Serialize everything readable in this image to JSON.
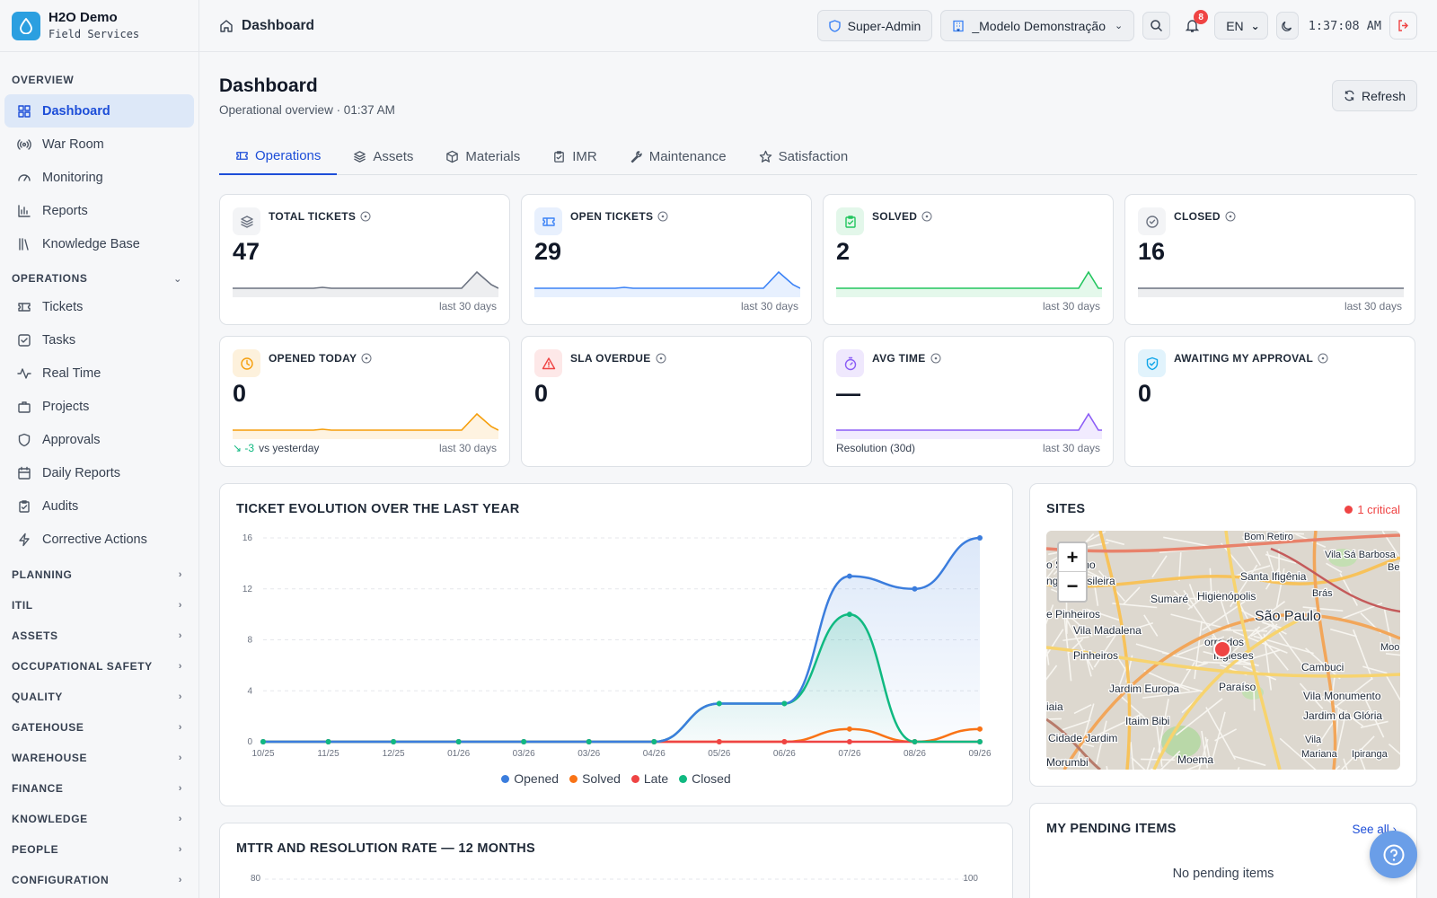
{
  "brand": {
    "title": "H2O Demo",
    "subtitle": "Field Services"
  },
  "sidebar": {
    "overview_label": "OVERVIEW",
    "overview_items": [
      {
        "label": "Dashboard",
        "icon": "grid-icon",
        "active": true
      },
      {
        "label": "War Room",
        "icon": "broadcast-icon"
      },
      {
        "label": "Monitoring",
        "icon": "gauge-icon"
      },
      {
        "label": "Reports",
        "icon": "bar-chart-icon"
      },
      {
        "label": "Knowledge Base",
        "icon": "library-icon"
      }
    ],
    "operations_label": "OPERATIONS",
    "operations_items": [
      {
        "label": "Tickets",
        "icon": "ticket-icon"
      },
      {
        "label": "Tasks",
        "icon": "check-square-icon"
      },
      {
        "label": "Real Time",
        "icon": "activity-icon"
      },
      {
        "label": "Projects",
        "icon": "briefcase-icon"
      },
      {
        "label": "Approvals",
        "icon": "shield-icon"
      },
      {
        "label": "Daily Reports",
        "icon": "calendar-icon"
      },
      {
        "label": "Audits",
        "icon": "clipboard-icon"
      },
      {
        "label": "Corrective Actions",
        "icon": "zap-icon"
      }
    ],
    "collapsed_sections": [
      "PLANNING",
      "ITIL",
      "ASSETS",
      "OCCUPATIONAL SAFETY",
      "QUALITY",
      "GATEHOUSE",
      "WAREHOUSE",
      "FINANCE",
      "KNOWLEDGE",
      "PEOPLE",
      "CONFIGURATION"
    ]
  },
  "topbar": {
    "breadcrumb": "Dashboard",
    "role": "Super-Admin",
    "tenant": "_Modelo Demonstração",
    "notifications": "8",
    "language": "EN",
    "clock": "1:37:08 AM"
  },
  "page": {
    "title": "Dashboard",
    "subtitle": "Operational overview · 01:37 AM",
    "refresh_label": "Refresh"
  },
  "tabs": [
    {
      "label": "Operations",
      "icon": "ticket-icon",
      "active": true
    },
    {
      "label": "Assets",
      "icon": "layers-icon"
    },
    {
      "label": "Materials",
      "icon": "box-icon"
    },
    {
      "label": "IMR",
      "icon": "clipboard-icon"
    },
    {
      "label": "Maintenance",
      "icon": "wrench-icon"
    },
    {
      "label": "Satisfaction",
      "icon": "star-icon"
    }
  ],
  "kpis": [
    {
      "label": "TOTAL TICKETS",
      "value": "47",
      "foot": "last 30 days",
      "left": "",
      "icon": "layers-icon",
      "color": "#6b7280",
      "bg": "#f3f4f6",
      "spark": "flat-bump",
      "sparkcolor": "#6b7280"
    },
    {
      "label": "OPEN TICKETS",
      "value": "29",
      "foot": "last 30 days",
      "left": "",
      "icon": "ticket-icon",
      "color": "#3b82f6",
      "bg": "#e8f0fd",
      "spark": "flat-bump",
      "sparkcolor": "#3b82f6"
    },
    {
      "label": "SOLVED",
      "value": "2",
      "foot": "last 30 days",
      "left": "",
      "icon": "clipboard-check-icon",
      "color": "#22c55e",
      "bg": "#e3f7ea",
      "spark": "end-bump",
      "sparkcolor": "#22c55e"
    },
    {
      "label": "CLOSED",
      "value": "16",
      "foot": "last 30 days",
      "left": "",
      "icon": "check-circle-icon",
      "color": "#6b7280",
      "bg": "#f3f4f6",
      "spark": "flat",
      "sparkcolor": "#6b7280"
    },
    {
      "label": "OPENED TODAY",
      "value": "0",
      "foot": "last 30 days",
      "left": "vs yesterday",
      "delta": "↘ -3",
      "icon": "clock-icon",
      "color": "#f59e0b",
      "bg": "#fdf1dc",
      "spark": "flat-bump",
      "sparkcolor": "#f59e0b"
    },
    {
      "label": "SLA OVERDUE",
      "value": "0",
      "foot": "",
      "left": "",
      "icon": "alert-triangle-icon",
      "color": "#ef4444",
      "bg": "#fde8e8",
      "spark": "none",
      "sparkcolor": "#ef4444"
    },
    {
      "label": "AVG TIME",
      "value": "—",
      "foot": "last 30 days",
      "left": "Resolution (30d)",
      "icon": "timer-icon",
      "color": "#8b5cf6",
      "bg": "#efe8fd",
      "spark": "end-bump",
      "sparkcolor": "#8b5cf6"
    },
    {
      "label": "AWAITING MY APPROVAL",
      "value": "0",
      "foot": "",
      "left": "",
      "icon": "shield-check-icon",
      "color": "#0ea5e9",
      "bg": "#e1f3fc",
      "spark": "none",
      "sparkcolor": "#0ea5e9"
    }
  ],
  "evolution": {
    "title": "TICKET EVOLUTION OVER THE LAST YEAR",
    "legend": [
      "Opened",
      "Solved",
      "Late",
      "Closed"
    ]
  },
  "chart_data": {
    "type": "line",
    "title": "TICKET EVOLUTION OVER THE LAST YEAR",
    "x": [
      "10/25",
      "11/25",
      "12/25",
      "01/26",
      "03/26",
      "03/26",
      "04/26",
      "05/26",
      "06/26",
      "07/26",
      "08/26",
      "09/26"
    ],
    "ylim": [
      0,
      16
    ],
    "yticks": [
      0,
      4,
      8,
      12,
      16
    ],
    "series": [
      {
        "name": "Opened",
        "color": "#3b7ddd",
        "values": [
          0,
          0,
          0,
          0,
          0,
          0,
          0,
          3,
          3,
          13,
          12,
          16
        ]
      },
      {
        "name": "Solved",
        "color": "#f97316",
        "values": [
          0,
          0,
          0,
          0,
          0,
          0,
          0,
          0,
          0,
          1,
          0,
          1
        ]
      },
      {
        "name": "Late",
        "color": "#ef4444",
        "values": [
          0,
          0,
          0,
          0,
          0,
          0,
          0,
          0,
          0,
          0,
          0,
          0
        ]
      },
      {
        "name": "Closed",
        "color": "#10b981",
        "values": [
          0,
          0,
          0,
          0,
          0,
          0,
          0,
          3,
          3,
          10,
          0,
          0
        ]
      }
    ]
  },
  "mttr": {
    "title": "MTTR AND RESOLUTION RATE — 12 MONTHS",
    "left_tick": "80",
    "right_tick": "100"
  },
  "sites": {
    "title": "SITES",
    "critical": "1 critical",
    "map_labels": [
      "Bom Retiro",
      "Vila Sá Barbosa",
      "o Siciliano",
      "ngio-Brasileira",
      "Santa Ifigênia",
      "Bel",
      "Higienópolis",
      "Brás",
      "Sumaré",
      "São Paulo",
      "e Pinheiros",
      "Vila Madalena",
      "orro dos",
      "Ingleses",
      "Moo",
      "Pinheiros",
      "Cambuci",
      "Jardim Europa",
      "Paraíso",
      "Vila Monumento",
      "iaia",
      "Itaim Bibi",
      "Jardim da Glória",
      "Cidade Jardim",
      "Vila",
      "Mariana",
      "Ipiranga",
      "Morumbi",
      "Moema"
    ]
  },
  "pending": {
    "title": "MY PENDING ITEMS",
    "see_all": "See all",
    "empty": "No pending items"
  }
}
